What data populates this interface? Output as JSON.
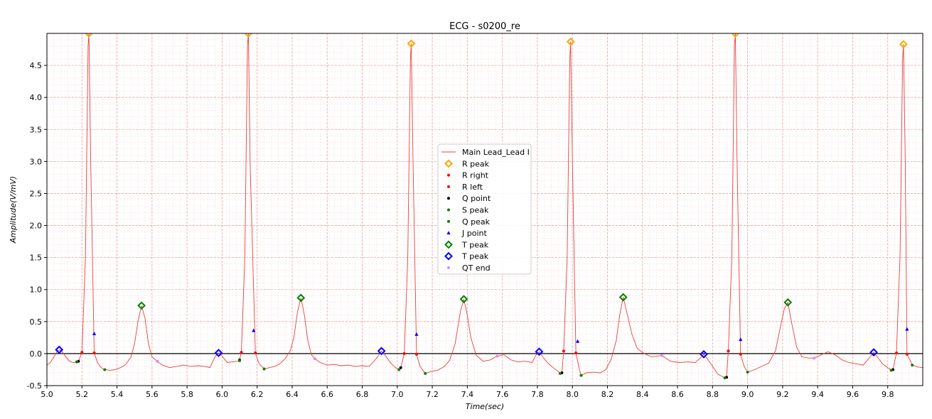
{
  "chart_data": {
    "type": "line",
    "title": "ECG - s0200_re",
    "xlabel": "Time(sec)",
    "ylabel": "Amplitude(V/mV)",
    "xlim": [
      5.0,
      10.0
    ],
    "ylim": [
      -0.5,
      5.0
    ],
    "x_ticks": [
      5.0,
      5.2,
      5.4,
      5.6,
      5.8,
      6.0,
      6.2,
      6.4,
      6.6,
      6.8,
      7.0,
      7.2,
      7.4,
      7.6,
      7.8,
      8.0,
      8.2,
      8.4,
      8.6,
      8.8,
      9.0,
      9.2,
      9.4,
      9.6,
      9.8
    ],
    "y_ticks": [
      -0.5,
      0.0,
      0.5,
      1.0,
      1.5,
      2.0,
      2.5,
      3.0,
      3.5,
      4.0,
      4.5
    ],
    "grid": true,
    "legend_position": "center",
    "baseline": 0.0,
    "colors": {
      "grid_major": "#f2a0a0",
      "grid_minor": "#fbd3d3",
      "signal": "#e8403a",
      "r_peak": "#ffa500",
      "r_right": "#ff0000",
      "r_left": "#ff0000",
      "q_point": "#000000",
      "s_peak": "#008000",
      "q_peak": "#008000",
      "j_point": "#0000ff",
      "t_peak_green": "#008000",
      "t_peak_blue": "#0000ff",
      "qt_end": "#ee82ee"
    },
    "legend": [
      {
        "label": "Main Lead_Lead I",
        "marker": "line",
        "color": "#e8403a"
      },
      {
        "label": "R peak",
        "marker": "diamond",
        "color": "#ffa500"
      },
      {
        "label": "R right",
        "marker": "dot",
        "color": "#ff0000"
      },
      {
        "label": "R left",
        "marker": "dot",
        "color": "#ff0000"
      },
      {
        "label": "Q point",
        "marker": "dot",
        "color": "#000000"
      },
      {
        "label": "S peak",
        "marker": "dot",
        "color": "#008000"
      },
      {
        "label": "Q peak",
        "marker": "dot",
        "color": "#008000"
      },
      {
        "label": "J point",
        "marker": "triangle",
        "color": "#0000ff"
      },
      {
        "label": "T peak",
        "marker": "diamond",
        "color": "#008000"
      },
      {
        "label": "T peak",
        "marker": "diamond",
        "color": "#0000ff"
      },
      {
        "label": "QT end",
        "marker": "star",
        "color": "#ee82ee"
      }
    ],
    "series": [
      {
        "name": "R peak",
        "marker": "diamond",
        "color": "#ffa500",
        "x": [
          5.24,
          6.15,
          7.08,
          7.99,
          8.93,
          9.89
        ],
        "y": [
          5.0,
          5.0,
          4.84,
          4.87,
          5.0,
          4.83
        ]
      },
      {
        "name": "R right",
        "marker": "dot",
        "color": "#ff0000",
        "x": [
          5.27,
          6.19,
          7.11,
          8.02,
          8.96,
          9.91
        ],
        "y": [
          0.01,
          0.01,
          -0.01,
          0.01,
          -0.01,
          -0.01
        ]
      },
      {
        "name": "R left",
        "marker": "dot",
        "color": "#ff0000",
        "x": [
          5.2,
          6.11,
          7.04,
          7.95,
          8.89,
          9.85
        ],
        "y": [
          0.02,
          0.02,
          0.0,
          0.04,
          0.04,
          0.01
        ]
      },
      {
        "name": "Q point",
        "marker": "dot",
        "color": "#000000",
        "x": [
          5.18,
          6.1,
          7.02,
          7.94,
          8.88,
          9.83
        ],
        "y": [
          -0.12,
          -0.1,
          -0.22,
          -0.3,
          -0.37,
          -0.25
        ]
      },
      {
        "name": "S peak",
        "marker": "dot",
        "color": "#008000",
        "x": [
          5.33,
          6.24,
          7.16,
          8.05,
          9.0,
          9.94
        ],
        "y": [
          -0.25,
          -0.24,
          -0.31,
          -0.34,
          -0.29,
          -0.18
        ]
      },
      {
        "name": "Q peak",
        "marker": "dot",
        "color": "#008000",
        "x": [
          5.17,
          6.1,
          7.01,
          7.93,
          8.87,
          9.82
        ],
        "y": [
          -0.13,
          -0.11,
          -0.25,
          -0.31,
          -0.38,
          -0.26
        ]
      },
      {
        "name": "J point",
        "marker": "triangle",
        "color": "#0000ff",
        "x": [
          5.27,
          6.18,
          7.11,
          8.03,
          8.96,
          9.91
        ],
        "y": [
          0.31,
          0.36,
          0.3,
          0.19,
          0.22,
          0.38
        ]
      },
      {
        "name": "T peak",
        "marker": "diamond",
        "color": "#008000",
        "x": [
          5.54,
          6.45,
          7.38,
          8.29,
          9.23
        ],
        "y": [
          0.75,
          0.87,
          0.85,
          0.88,
          0.8
        ]
      },
      {
        "name": "T peak",
        "marker": "diamond",
        "color": "#0000ff",
        "x": [
          5.07,
          5.98,
          6.91,
          7.81,
          8.75,
          9.72
        ],
        "y": [
          0.06,
          0.01,
          0.04,
          0.03,
          -0.01,
          0.02
        ]
      },
      {
        "name": "QT end",
        "marker": "star",
        "color": "#ee82ee",
        "x": [
          5.63,
          6.53,
          7.57,
          8.51,
          9.38
        ],
        "y": [
          -0.12,
          -0.08,
          -0.04,
          -0.03,
          -0.07
        ]
      }
    ],
    "signal": [
      {
        "x": 5.0,
        "y": -0.18
      },
      {
        "x": 5.02,
        "y": -0.14
      },
      {
        "x": 5.04,
        "y": -0.05
      },
      {
        "x": 5.06,
        "y": 0.04
      },
      {
        "x": 5.075,
        "y": 0.06
      },
      {
        "x": 5.09,
        "y": 0.02
      },
      {
        "x": 5.11,
        "y": -0.06
      },
      {
        "x": 5.13,
        "y": -0.12
      },
      {
        "x": 5.15,
        "y": -0.14
      },
      {
        "x": 5.17,
        "y": -0.13
      },
      {
        "x": 5.18,
        "y": -0.12
      },
      {
        "x": 5.2,
        "y": 0.02
      },
      {
        "x": 5.22,
        "y": 1.5
      },
      {
        "x": 5.235,
        "y": 4.8
      },
      {
        "x": 5.24,
        "y": 5.0
      },
      {
        "x": 5.25,
        "y": 3.0
      },
      {
        "x": 5.27,
        "y": 0.01
      },
      {
        "x": 5.29,
        "y": -0.15
      },
      {
        "x": 5.31,
        "y": -0.22
      },
      {
        "x": 5.33,
        "y": -0.25
      },
      {
        "x": 5.36,
        "y": -0.26
      },
      {
        "x": 5.39,
        "y": -0.25
      },
      {
        "x": 5.42,
        "y": -0.22
      },
      {
        "x": 5.45,
        "y": -0.17
      },
      {
        "x": 5.48,
        "y": -0.05
      },
      {
        "x": 5.5,
        "y": 0.15
      },
      {
        "x": 5.52,
        "y": 0.5
      },
      {
        "x": 5.54,
        "y": 0.75
      },
      {
        "x": 5.56,
        "y": 0.55
      },
      {
        "x": 5.58,
        "y": 0.15
      },
      {
        "x": 5.6,
        "y": -0.05
      },
      {
        "x": 5.63,
        "y": -0.12
      },
      {
        "x": 5.66,
        "y": -0.18
      },
      {
        "x": 5.7,
        "y": -0.22
      },
      {
        "x": 5.74,
        "y": -0.2
      },
      {
        "x": 5.78,
        "y": -0.18
      },
      {
        "x": 5.82,
        "y": -0.2
      },
      {
        "x": 5.86,
        "y": -0.19
      },
      {
        "x": 5.9,
        "y": -0.2
      },
      {
        "x": 5.93,
        "y": -0.22
      },
      {
        "x": 5.96,
        "y": -0.05
      },
      {
        "x": 5.98,
        "y": 0.01
      },
      {
        "x": 6.0,
        "y": -0.04
      },
      {
        "x": 6.03,
        "y": -0.14
      },
      {
        "x": 6.06,
        "y": -0.13
      },
      {
        "x": 6.09,
        "y": -0.12
      },
      {
        "x": 6.1,
        "y": -0.1
      },
      {
        "x": 6.11,
        "y": 0.02
      },
      {
        "x": 6.13,
        "y": 1.5
      },
      {
        "x": 6.145,
        "y": 4.8
      },
      {
        "x": 6.15,
        "y": 5.0
      },
      {
        "x": 6.16,
        "y": 3.0
      },
      {
        "x": 6.19,
        "y": 0.01
      },
      {
        "x": 6.21,
        "y": -0.15
      },
      {
        "x": 6.24,
        "y": -0.24
      },
      {
        "x": 6.27,
        "y": -0.22
      },
      {
        "x": 6.3,
        "y": -0.2
      },
      {
        "x": 6.33,
        "y": -0.16
      },
      {
        "x": 6.36,
        "y": -0.08
      },
      {
        "x": 6.39,
        "y": 0.05
      },
      {
        "x": 6.41,
        "y": 0.25
      },
      {
        "x": 6.43,
        "y": 0.65
      },
      {
        "x": 6.45,
        "y": 0.87
      },
      {
        "x": 6.47,
        "y": 0.6
      },
      {
        "x": 6.49,
        "y": 0.2
      },
      {
        "x": 6.51,
        "y": -0.02
      },
      {
        "x": 6.53,
        "y": -0.08
      },
      {
        "x": 6.56,
        "y": -0.14
      },
      {
        "x": 6.6,
        "y": -0.18
      },
      {
        "x": 6.64,
        "y": -0.17
      },
      {
        "x": 6.68,
        "y": -0.19
      },
      {
        "x": 6.72,
        "y": -0.18
      },
      {
        "x": 6.76,
        "y": -0.2
      },
      {
        "x": 6.8,
        "y": -0.19
      },
      {
        "x": 6.84,
        "y": -0.2
      },
      {
        "x": 6.88,
        "y": -0.08
      },
      {
        "x": 6.91,
        "y": 0.04
      },
      {
        "x": 6.93,
        "y": -0.02
      },
      {
        "x": 6.96,
        "y": -0.14
      },
      {
        "x": 6.99,
        "y": -0.22
      },
      {
        "x": 7.01,
        "y": -0.25
      },
      {
        "x": 7.02,
        "y": -0.22
      },
      {
        "x": 7.04,
        "y": 0.0
      },
      {
        "x": 7.06,
        "y": 1.5
      },
      {
        "x": 7.075,
        "y": 4.6
      },
      {
        "x": 7.08,
        "y": 4.84
      },
      {
        "x": 7.09,
        "y": 3.0
      },
      {
        "x": 7.11,
        "y": -0.01
      },
      {
        "x": 7.13,
        "y": -0.2
      },
      {
        "x": 7.16,
        "y": -0.31
      },
      {
        "x": 7.19,
        "y": -0.28
      },
      {
        "x": 7.23,
        "y": -0.26
      },
      {
        "x": 7.27,
        "y": -0.2
      },
      {
        "x": 7.3,
        "y": -0.1
      },
      {
        "x": 7.33,
        "y": 0.15
      },
      {
        "x": 7.36,
        "y": 0.65
      },
      {
        "x": 7.38,
        "y": 0.85
      },
      {
        "x": 7.4,
        "y": 0.6
      },
      {
        "x": 7.42,
        "y": 0.25
      },
      {
        "x": 7.45,
        "y": -0.02
      },
      {
        "x": 7.49,
        "y": -0.12
      },
      {
        "x": 7.53,
        "y": -0.1
      },
      {
        "x": 7.57,
        "y": -0.04
      },
      {
        "x": 7.61,
        "y": -0.02
      },
      {
        "x": 7.65,
        "y": -0.1
      },
      {
        "x": 7.69,
        "y": -0.13
      },
      {
        "x": 7.73,
        "y": -0.12
      },
      {
        "x": 7.77,
        "y": -0.14
      },
      {
        "x": 7.79,
        "y": -0.03
      },
      {
        "x": 7.81,
        "y": 0.03
      },
      {
        "x": 7.83,
        "y": -0.05
      },
      {
        "x": 7.86,
        "y": -0.15
      },
      {
        "x": 7.89,
        "y": -0.22
      },
      {
        "x": 7.92,
        "y": -0.28
      },
      {
        "x": 7.93,
        "y": -0.31
      },
      {
        "x": 7.94,
        "y": -0.3
      },
      {
        "x": 7.95,
        "y": 0.04
      },
      {
        "x": 7.97,
        "y": 1.5
      },
      {
        "x": 7.985,
        "y": 4.6
      },
      {
        "x": 7.99,
        "y": 4.87
      },
      {
        "x": 8.0,
        "y": 3.0
      },
      {
        "x": 8.02,
        "y": 0.01
      },
      {
        "x": 8.04,
        "y": -0.25
      },
      {
        "x": 8.05,
        "y": -0.34
      },
      {
        "x": 8.08,
        "y": -0.3
      },
      {
        "x": 8.12,
        "y": -0.29
      },
      {
        "x": 8.16,
        "y": -0.3
      },
      {
        "x": 8.19,
        "y": -0.25
      },
      {
        "x": 8.22,
        "y": -0.1
      },
      {
        "x": 8.25,
        "y": 0.2
      },
      {
        "x": 8.27,
        "y": 0.6
      },
      {
        "x": 8.29,
        "y": 0.88
      },
      {
        "x": 8.31,
        "y": 0.65
      },
      {
        "x": 8.34,
        "y": 0.3
      },
      {
        "x": 8.37,
        "y": 0.08
      },
      {
        "x": 8.41,
        "y": 0.0
      },
      {
        "x": 8.45,
        "y": -0.05
      },
      {
        "x": 8.51,
        "y": -0.03
      },
      {
        "x": 8.56,
        "y": -0.12
      },
      {
        "x": 8.61,
        "y": -0.14
      },
      {
        "x": 8.66,
        "y": -0.13
      },
      {
        "x": 8.7,
        "y": -0.14
      },
      {
        "x": 8.73,
        "y": -0.07
      },
      {
        "x": 8.75,
        "y": -0.01
      },
      {
        "x": 8.77,
        "y": -0.08
      },
      {
        "x": 8.8,
        "y": -0.2
      },
      {
        "x": 8.83,
        "y": -0.32
      },
      {
        "x": 8.87,
        "y": -0.38
      },
      {
        "x": 8.88,
        "y": -0.37
      },
      {
        "x": 8.89,
        "y": 0.04
      },
      {
        "x": 8.91,
        "y": 1.5
      },
      {
        "x": 8.925,
        "y": 4.8
      },
      {
        "x": 8.93,
        "y": 5.0
      },
      {
        "x": 8.94,
        "y": 3.0
      },
      {
        "x": 8.96,
        "y": -0.01
      },
      {
        "x": 8.98,
        "y": -0.2
      },
      {
        "x": 9.0,
        "y": -0.29
      },
      {
        "x": 9.04,
        "y": -0.25
      },
      {
        "x": 9.08,
        "y": -0.2
      },
      {
        "x": 9.12,
        "y": -0.15
      },
      {
        "x": 9.16,
        "y": 0.05
      },
      {
        "x": 9.19,
        "y": 0.45
      },
      {
        "x": 9.21,
        "y": 0.7
      },
      {
        "x": 9.23,
        "y": 0.8
      },
      {
        "x": 9.25,
        "y": 0.5
      },
      {
        "x": 9.28,
        "y": 0.1
      },
      {
        "x": 9.31,
        "y": -0.05
      },
      {
        "x": 9.35,
        "y": -0.07
      },
      {
        "x": 9.38,
        "y": -0.07
      },
      {
        "x": 9.42,
        "y": -0.02
      },
      {
        "x": 9.46,
        "y": 0.03
      },
      {
        "x": 9.5,
        "y": -0.02
      },
      {
        "x": 9.54,
        "y": -0.1
      },
      {
        "x": 9.58,
        "y": -0.14
      },
      {
        "x": 9.62,
        "y": -0.16
      },
      {
        "x": 9.66,
        "y": -0.18
      },
      {
        "x": 9.7,
        "y": -0.05
      },
      {
        "x": 9.72,
        "y": 0.02
      },
      {
        "x": 9.74,
        "y": -0.05
      },
      {
        "x": 9.77,
        "y": -0.16
      },
      {
        "x": 9.8,
        "y": -0.22
      },
      {
        "x": 9.82,
        "y": -0.26
      },
      {
        "x": 9.83,
        "y": -0.25
      },
      {
        "x": 9.85,
        "y": 0.01
      },
      {
        "x": 9.87,
        "y": 1.5
      },
      {
        "x": 9.885,
        "y": 4.6
      },
      {
        "x": 9.89,
        "y": 4.83
      },
      {
        "x": 9.9,
        "y": 3.0
      },
      {
        "x": 9.91,
        "y": -0.01
      },
      {
        "x": 9.93,
        "y": -0.12
      },
      {
        "x": 9.94,
        "y": -0.18
      },
      {
        "x": 9.97,
        "y": -0.21
      },
      {
        "x": 10.0,
        "y": -0.22
      }
    ]
  }
}
